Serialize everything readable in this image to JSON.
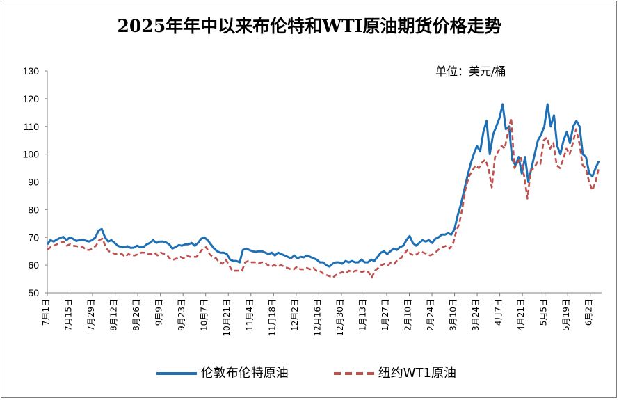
{
  "chart_data": {
    "type": "line",
    "title": "2025年年中以来布伦特和WTI原油期货价格走势",
    "unit": "单位：美元/桶",
    "ylim": [
      50,
      130
    ],
    "yticks": [
      50,
      60,
      70,
      80,
      90,
      100,
      110,
      120,
      130
    ],
    "x_tick_labels": [
      "7月1日",
      "7月15日",
      "7月29日",
      "8月12日",
      "8月26日",
      "9月9日",
      "9月23日",
      "10月7日",
      "10月21日",
      "11月4日",
      "11月18日",
      "12月2日",
      "12月16日",
      "12月30日",
      "1月13日",
      "1月27日",
      "2月10日",
      "2月24日",
      "3月10日",
      "3月24日",
      "4月7日",
      "4月21日",
      "5月5日",
      "5月19日",
      "6月2日"
    ],
    "grid": false,
    "legend_position": "bottom",
    "series": [
      {
        "name": "伦敦布伦特原油",
        "color": "#1f6fb5",
        "style": "solid",
        "values": [
          67.5,
          69.0,
          68.5,
          69.2,
          69.8,
          70.2,
          69.0,
          70.0,
          69.5,
          68.7,
          69.0,
          69.2,
          68.8,
          68.5,
          69.0,
          70.0,
          72.5,
          73.0,
          70.0,
          68.5,
          69.0,
          68.0,
          67.0,
          66.5,
          66.5,
          66.8,
          66.2,
          66.3,
          67.0,
          66.5,
          66.5,
          67.5,
          68.0,
          69.0,
          68.0,
          68.5,
          68.5,
          68.2,
          67.5,
          66.0,
          66.5,
          67.2,
          67.0,
          67.5,
          67.5,
          68.0,
          67.0,
          68.0,
          69.5,
          70.0,
          69.0,
          67.5,
          66.0,
          65.0,
          64.5,
          64.5,
          64.0,
          62.0,
          61.5,
          61.5,
          61.0,
          65.5,
          66.0,
          65.5,
          65.0,
          64.8,
          65.0,
          65.0,
          64.5,
          64.0,
          64.5,
          63.5,
          64.5,
          64.0,
          63.5,
          63.0,
          62.5,
          63.5,
          62.5,
          63.0,
          62.8,
          63.5,
          63.0,
          62.5,
          62.0,
          61.0,
          61.0,
          60.0,
          59.5,
          60.5,
          61.0,
          61.0,
          60.5,
          61.5,
          61.0,
          61.5,
          61.0,
          61.0,
          62.0,
          61.0,
          61.0,
          62.0,
          61.5,
          63.0,
          64.5,
          65.0,
          64.0,
          65.0,
          66.0,
          65.5,
          66.5,
          67.0,
          69.0,
          70.5,
          68.0,
          67.0,
          68.0,
          69.0,
          68.5,
          69.0,
          68.0,
          69.5,
          70.0,
          71.0,
          71.0,
          71.5,
          71.0,
          73.0,
          78.0,
          82.0,
          87.0,
          92.0,
          96.5,
          100.0,
          103.0,
          101.0,
          108.0,
          112.0,
          100.0,
          107.0,
          110.0,
          113.0,
          118.0,
          109.0,
          110.0,
          98.0,
          96.0,
          99.0,
          93.0,
          99.0,
          90.0,
          95.0,
          100.0,
          105.0,
          107.0,
          110.0,
          118.0,
          110.0,
          114.0,
          103.0,
          100.0,
          105.0,
          108.0,
          104.0,
          110.0,
          112.0,
          110.0,
          100.0,
          99.0,
          93.0,
          92.0,
          95.0,
          97.5
        ]
      },
      {
        "name": "纽约WT1原油",
        "color": "#c0504d",
        "style": "dashed",
        "values": [
          65.5,
          66.5,
          67.0,
          67.5,
          68.0,
          68.5,
          67.0,
          67.5,
          67.0,
          66.8,
          66.5,
          66.5,
          65.5,
          65.5,
          66.0,
          67.0,
          69.0,
          69.5,
          66.5,
          65.0,
          64.5,
          64.0,
          64.0,
          64.0,
          63.0,
          64.0,
          63.5,
          63.5,
          64.0,
          64.5,
          64.5,
          64.0,
          64.0,
          64.5,
          63.5,
          64.5,
          64.0,
          63.5,
          62.0,
          62.0,
          62.5,
          63.0,
          62.5,
          63.5,
          63.0,
          63.0,
          63.0,
          64.5,
          66.0,
          66.5,
          64.0,
          63.0,
          62.5,
          61.0,
          60.5,
          62.0,
          60.0,
          58.0,
          58.0,
          58.0,
          58.0,
          61.0,
          61.5,
          61.0,
          61.0,
          60.5,
          61.0,
          61.0,
          60.0,
          59.5,
          60.0,
          59.5,
          60.0,
          59.5,
          59.0,
          58.5,
          58.5,
          59.5,
          58.5,
          58.5,
          59.0,
          58.5,
          59.0,
          58.0,
          58.0,
          57.0,
          56.5,
          56.0,
          55.5,
          56.5,
          57.0,
          57.5,
          57.0,
          58.0,
          57.5,
          58.0,
          58.0,
          57.5,
          58.0,
          57.5,
          55.5,
          58.0,
          59.0,
          60.0,
          60.5,
          60.0,
          61.0,
          60.5,
          62.0,
          62.5,
          64.0,
          65.5,
          64.0,
          63.5,
          64.0,
          65.0,
          64.5,
          64.0,
          63.5,
          64.0,
          65.0,
          66.0,
          66.5,
          67.0,
          66.0,
          67.5,
          72.0,
          75.0,
          81.0,
          88.0,
          92.0,
          94.0,
          96.0,
          95.0,
          97.0,
          98.0,
          95.0,
          88.0,
          99.0,
          101.0,
          103.0,
          102.0,
          108.0,
          113.0,
          95.0,
          97.0,
          99.0,
          92.0,
          84.0,
          94.0,
          95.0,
          97.0,
          96.5,
          105.0,
          106.0,
          102.0,
          104.0,
          96.0,
          95.0,
          98.0,
          102.0,
          100.0,
          104.0,
          109.0,
          104.0,
          96.0,
          95.0,
          90.0,
          87.0,
          90.0,
          95.0
        ]
      }
    ]
  }
}
